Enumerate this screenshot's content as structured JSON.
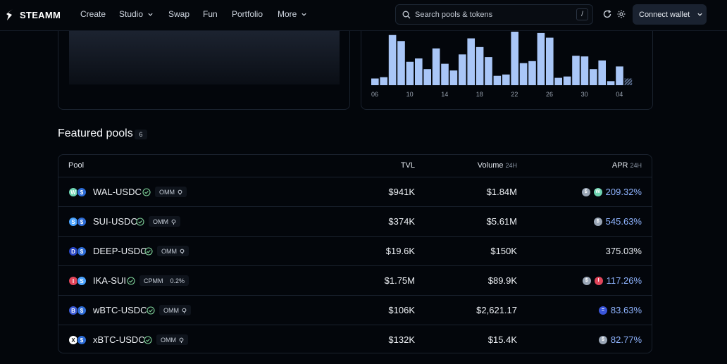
{
  "nav": {
    "brand": "STEAMM",
    "items": [
      {
        "label": "Create"
      },
      {
        "label": "Studio"
      },
      {
        "label": "Swap"
      },
      {
        "label": "Fun"
      },
      {
        "label": "Portfolio"
      },
      {
        "label": "More"
      }
    ],
    "search_placeholder": "Search pools & tokens",
    "search_shortcut": "/",
    "connect_label": "Connect wallet",
    "icons": [
      "refresh-icon",
      "settings-icon"
    ]
  },
  "chart_data": {
    "type": "bar",
    "x_tick_labels": [
      "06",
      "10",
      "14",
      "18",
      "22",
      "26",
      "30",
      "04"
    ],
    "values": [
      10,
      12,
      75,
      66,
      35,
      40,
      24,
      55,
      32,
      22,
      46,
      70,
      57,
      42,
      14,
      16,
      80,
      33,
      36,
      78,
      71,
      11,
      13,
      44,
      43,
      24,
      37,
      6,
      28,
      10
    ],
    "last_bar_pending": true,
    "bar_color": "#a9c6f7",
    "grid": false
  },
  "featured": {
    "title": "Featured pools",
    "count": "6",
    "columns": {
      "pool": "Pool",
      "tvl": "TVL",
      "volume": "Volume",
      "volume_sub": "24H",
      "apr": "APR",
      "apr_sub": "24H"
    },
    "rows": [
      {
        "pair": "WAL-USDC",
        "type": "OMM",
        "type_extra": "",
        "tvl": "$941K",
        "volume": "$1.84M",
        "apr": "209.32%",
        "boosted": true,
        "tokens": [
          {
            "letter": "W",
            "color": "#6fd4b2"
          },
          {
            "letter": "$",
            "color": "#2d6cd6"
          }
        ],
        "rewards": [
          {
            "letter": "$",
            "color": "#9aa6b6"
          },
          {
            "letter": "W",
            "color": "#6fd4b2"
          }
        ]
      },
      {
        "pair": "SUI-USDC",
        "type": "OMM",
        "type_extra": "",
        "tvl": "$374K",
        "volume": "$5.61M",
        "apr": "545.63%",
        "boosted": true,
        "tokens": [
          {
            "letter": "S",
            "color": "#4aa3ff"
          },
          {
            "letter": "$",
            "color": "#2d6cd6"
          }
        ],
        "rewards": [
          {
            "letter": "$",
            "color": "#9aa6b6"
          }
        ]
      },
      {
        "pair": "DEEP-USDC",
        "type": "OMM",
        "type_extra": "",
        "tvl": "$19.6K",
        "volume": "$150K",
        "apr": "375.03%",
        "boosted": false,
        "tokens": [
          {
            "letter": "D",
            "color": "#2845c4"
          },
          {
            "letter": "$",
            "color": "#2d6cd6"
          }
        ],
        "rewards": []
      },
      {
        "pair": "IKA-SUI",
        "type": "CPMM",
        "type_extra": "0.2%",
        "tvl": "$1.75M",
        "volume": "$89.9K",
        "apr": "117.26%",
        "boosted": true,
        "tokens": [
          {
            "letter": "I",
            "color": "#e0455a"
          },
          {
            "letter": "S",
            "color": "#4aa3ff"
          }
        ],
        "rewards": [
          {
            "letter": "$",
            "color": "#9aa6b6"
          },
          {
            "letter": "I",
            "color": "#e0455a"
          }
        ]
      },
      {
        "pair": "wBTC-USDC",
        "type": "OMM",
        "type_extra": "",
        "tvl": "$106K",
        "volume": "$2,621.17",
        "apr": "83.63%",
        "boosted": true,
        "tokens": [
          {
            "letter": "B",
            "color": "#3c5bd6"
          },
          {
            "letter": "$",
            "color": "#2d6cd6"
          }
        ],
        "rewards": [
          {
            "letter": "=",
            "color": "#3a55d9"
          }
        ]
      },
      {
        "pair": "xBTC-USDC",
        "type": "OMM",
        "type_extra": "",
        "tvl": "$132K",
        "volume": "$15.4K",
        "apr": "82.77%",
        "boosted": true,
        "tokens": [
          {
            "letter": "X",
            "color": "#ffffff"
          },
          {
            "letter": "$",
            "color": "#2d6cd6"
          }
        ],
        "rewards": [
          {
            "letter": "$",
            "color": "#9aa6b6"
          }
        ]
      }
    ]
  }
}
